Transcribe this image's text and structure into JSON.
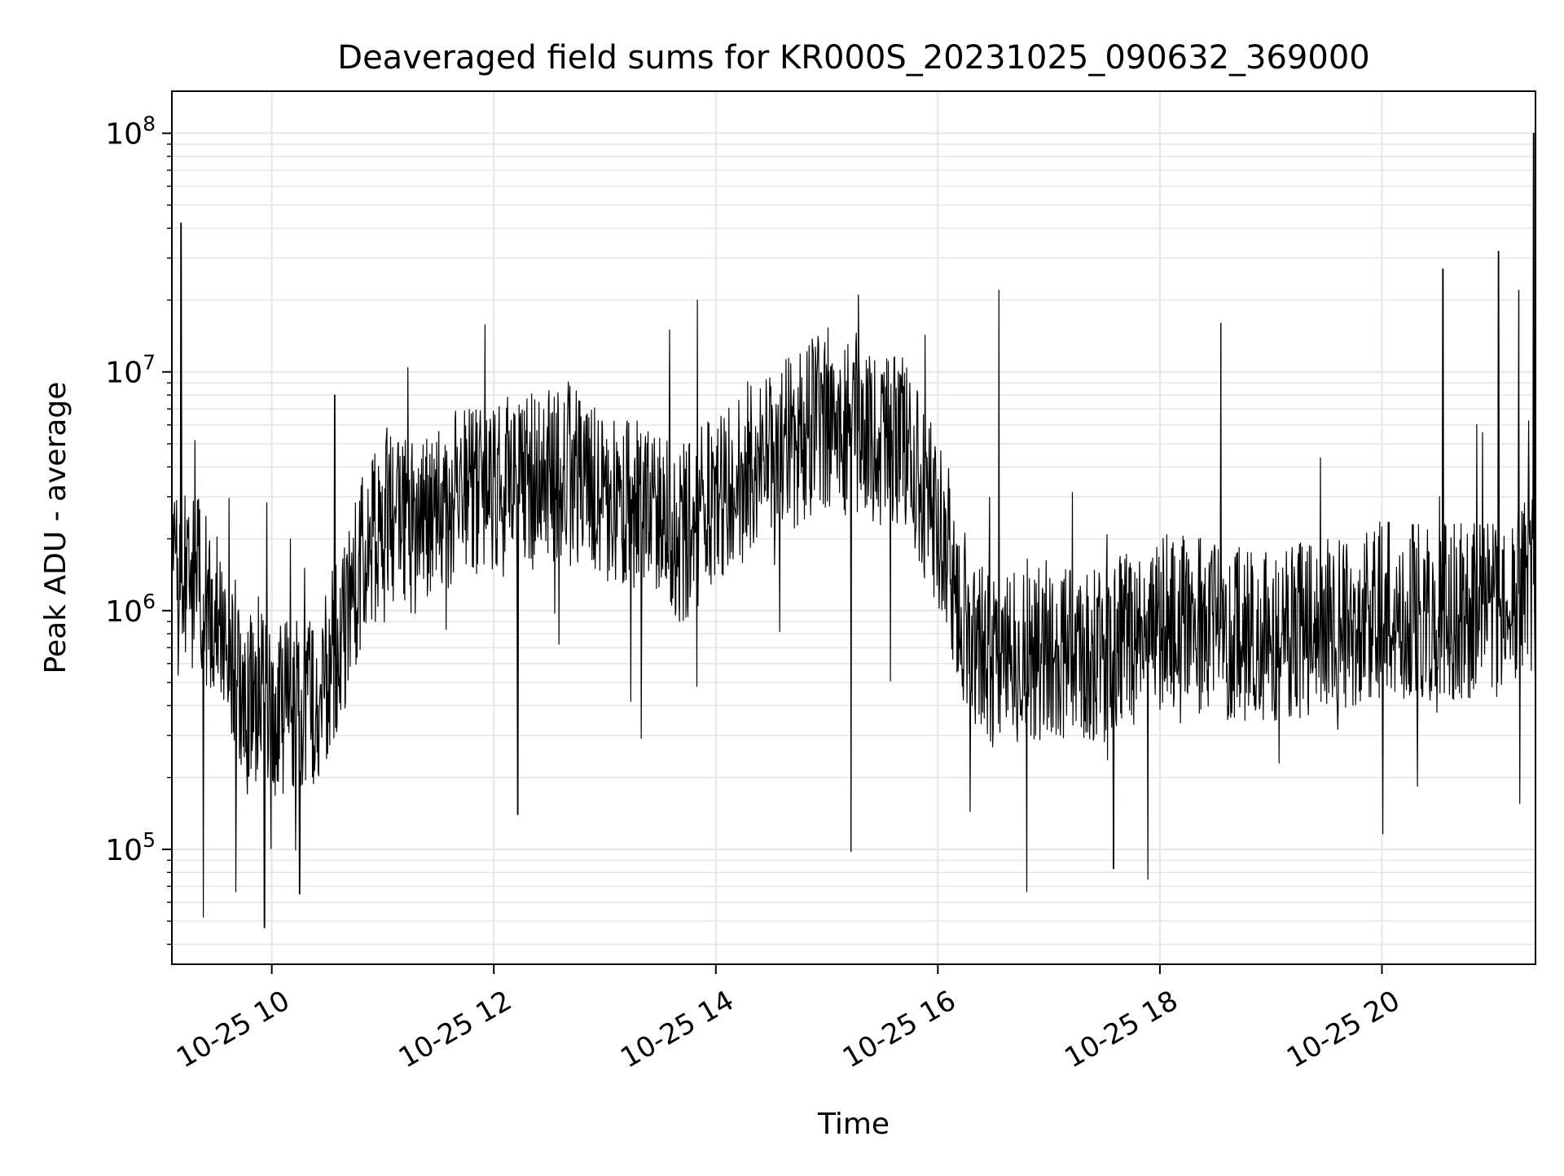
{
  "chart_data": {
    "type": "line",
    "title": "Deaveraged field sums for KR000S_20231025_090632_369000",
    "xlabel": "Time",
    "ylabel": "Peak ADU - average",
    "x_scale": "time",
    "y_scale": "log",
    "xlim": [
      "2023-10-25 09:06",
      "2023-10-25 21:23"
    ],
    "ylim": [
      33000,
      150000000
    ],
    "x_ticks": [
      {
        "value": "2023-10-25 10:00",
        "label": "10-25 10"
      },
      {
        "value": "2023-10-25 12:00",
        "label": "10-25 12"
      },
      {
        "value": "2023-10-25 14:00",
        "label": "10-25 14"
      },
      {
        "value": "2023-10-25 16:00",
        "label": "10-25 16"
      },
      {
        "value": "2023-10-25 18:00",
        "label": "10-25 18"
      },
      {
        "value": "2023-10-25 20:00",
        "label": "10-25 20"
      }
    ],
    "y_ticks": [
      {
        "value": 100000,
        "base": "10",
        "exp": "5"
      },
      {
        "value": 1000000,
        "base": "10",
        "exp": "6"
      },
      {
        "value": 10000000,
        "base": "10",
        "exp": "7"
      },
      {
        "value": 100000000,
        "base": "10",
        "exp": "8"
      }
    ],
    "grid": true,
    "line_color": "#000000",
    "series": [
      {
        "points": [
          {
            "x": "2023-10-25 09:06",
            "y": 1200000
          },
          {
            "x": "2023-10-25 09:15",
            "y": 1400000
          },
          {
            "x": "2023-10-25 09:30",
            "y": 1000000
          },
          {
            "x": "2023-10-25 09:45",
            "y": 450000
          },
          {
            "x": "2023-10-25 10:00",
            "y": 400000
          },
          {
            "x": "2023-10-25 10:15",
            "y": 380000
          },
          {
            "x": "2023-10-25 10:30",
            "y": 500000
          },
          {
            "x": "2023-10-25 10:45",
            "y": 1300000
          },
          {
            "x": "2023-10-25 11:00",
            "y": 2500000
          },
          {
            "x": "2023-10-25 11:20",
            "y": 2200000
          },
          {
            "x": "2023-10-25 11:40",
            "y": 3000000
          },
          {
            "x": "2023-10-25 12:00",
            "y": 3200000
          },
          {
            "x": "2023-10-25 12:20",
            "y": 3500000
          },
          {
            "x": "2023-10-25 12:40",
            "y": 4000000
          },
          {
            "x": "2023-10-25 13:00",
            "y": 2800000
          },
          {
            "x": "2023-10-25 13:20",
            "y": 2600000
          },
          {
            "x": "2023-10-25 13:40",
            "y": 2000000
          },
          {
            "x": "2023-10-25 14:00",
            "y": 3000000
          },
          {
            "x": "2023-10-25 14:20",
            "y": 4000000
          },
          {
            "x": "2023-10-25 14:40",
            "y": 5000000
          },
          {
            "x": "2023-10-25 15:00",
            "y": 6500000
          },
          {
            "x": "2023-10-25 15:20",
            "y": 5500000
          },
          {
            "x": "2023-10-25 15:40",
            "y": 5000000
          },
          {
            "x": "2023-10-25 16:00",
            "y": 2500000
          },
          {
            "x": "2023-10-25 16:15",
            "y": 900000
          },
          {
            "x": "2023-10-25 16:30",
            "y": 600000
          },
          {
            "x": "2023-10-25 17:00",
            "y": 700000
          },
          {
            "x": "2023-10-25 17:30",
            "y": 650000
          },
          {
            "x": "2023-10-25 18:00",
            "y": 900000
          },
          {
            "x": "2023-10-25 18:30",
            "y": 850000
          },
          {
            "x": "2023-10-25 19:00",
            "y": 750000
          },
          {
            "x": "2023-10-25 19:30",
            "y": 900000
          },
          {
            "x": "2023-10-25 20:00",
            "y": 1000000
          },
          {
            "x": "2023-10-25 20:30",
            "y": 1000000
          },
          {
            "x": "2023-10-25 21:00",
            "y": 1000000
          },
          {
            "x": "2023-10-25 21:23",
            "y": 1300000
          }
        ],
        "spikes": [
          {
            "x": "2023-10-25 09:11",
            "y": 42000000
          },
          {
            "x": "2023-10-25 09:23",
            "y": 52000
          },
          {
            "x": "2023-10-25 09:56",
            "y": 47000
          },
          {
            "x": "2023-10-25 10:15",
            "y": 65000
          },
          {
            "x": "2023-10-25 10:34",
            "y": 8000000
          },
          {
            "x": "2023-10-25 12:13",
            "y": 140000
          },
          {
            "x": "2023-10-25 13:50",
            "y": 20000000
          },
          {
            "x": "2023-10-25 15:13",
            "y": 98000
          },
          {
            "x": "2023-10-25 15:17",
            "y": 21000000
          },
          {
            "x": "2023-10-25 16:33",
            "y": 22000000
          },
          {
            "x": "2023-10-25 17:35",
            "y": 83000
          },
          {
            "x": "2023-10-25 18:33",
            "y": 16000000
          },
          {
            "x": "2023-10-25 20:33",
            "y": 27000000
          },
          {
            "x": "2023-10-25 21:03",
            "y": 32000000
          },
          {
            "x": "2023-10-25 21:14",
            "y": 22000000
          },
          {
            "x": "2023-10-25 21:22",
            "y": 100000000
          }
        ]
      }
    ]
  }
}
